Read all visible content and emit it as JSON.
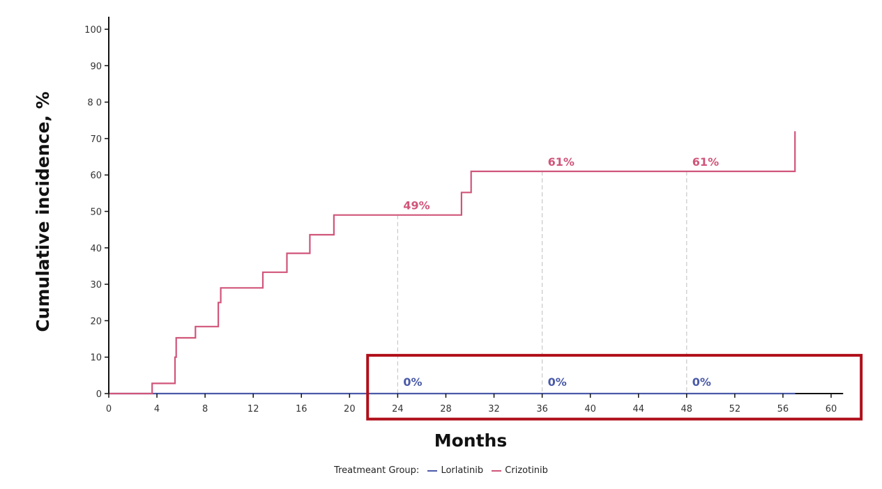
{
  "chart_data": {
    "type": "line",
    "step": true,
    "xlabel": "Months",
    "ylabel": "Cumulative incidence, %",
    "xlim": [
      0,
      61
    ],
    "ylim": [
      0,
      100
    ],
    "x_ticks": [
      0,
      4,
      8,
      12,
      16,
      20,
      24,
      28,
      32,
      36,
      40,
      44,
      48,
      52,
      56,
      60
    ],
    "y_ticks": [
      {
        "value": 0,
        "label": "0"
      },
      {
        "value": 10,
        "label": "10"
      },
      {
        "value": 20,
        "label": "20"
      },
      {
        "value": 30,
        "label": "30"
      },
      {
        "value": 40,
        "label": "40"
      },
      {
        "value": 50,
        "label": "50"
      },
      {
        "value": 60,
        "label": "60"
      },
      {
        "value": 70,
        "label": "70"
      },
      {
        "value": 80,
        "label": "8 0"
      },
      {
        "value": 90,
        "label": "90"
      },
      {
        "value": 100,
        "label": "100"
      }
    ],
    "series": [
      {
        "name": "Lorlatinib",
        "color": "#4a5aa8",
        "points": [
          [
            0,
            0
          ],
          [
            57,
            0
          ]
        ]
      },
      {
        "name": "Crizotinib",
        "color": "#d0557a",
        "points": [
          [
            0,
            0
          ],
          [
            3.6,
            0
          ],
          [
            3.6,
            2.8
          ],
          [
            5.5,
            2.8
          ],
          [
            5.5,
            10
          ],
          [
            5.6,
            10
          ],
          [
            5.6,
            15.3
          ],
          [
            7.2,
            15.3
          ],
          [
            7.2,
            18.4
          ],
          [
            9.1,
            18.4
          ],
          [
            9.1,
            25
          ],
          [
            9.3,
            25
          ],
          [
            9.3,
            29
          ],
          [
            12.8,
            29
          ],
          [
            12.8,
            33.3
          ],
          [
            14.8,
            33.3
          ],
          [
            14.8,
            38.5
          ],
          [
            16.7,
            38.5
          ],
          [
            16.7,
            43.6
          ],
          [
            18.7,
            43.6
          ],
          [
            18.7,
            49
          ],
          [
            29.3,
            49
          ],
          [
            29.3,
            55.2
          ],
          [
            30.1,
            55.2
          ],
          [
            30.1,
            61
          ],
          [
            57,
            61
          ],
          [
            57,
            72
          ]
        ]
      }
    ],
    "reference_lines": [
      24,
      36,
      48
    ],
    "annotations": [
      {
        "x": 24,
        "y": 49,
        "text": "49%",
        "series": "Crizotinib"
      },
      {
        "x": 36,
        "y": 61,
        "text": "61%",
        "series": "Crizotinib"
      },
      {
        "x": 48,
        "y": 61,
        "text": "61%",
        "series": "Crizotinib"
      },
      {
        "x": 24,
        "y": 0,
        "text": "0%",
        "series": "Lorlatinib"
      },
      {
        "x": 36,
        "y": 0,
        "text": "0%",
        "series": "Lorlatinib"
      },
      {
        "x": 48,
        "y": 0,
        "text": "0%",
        "series": "Lorlatinib"
      }
    ],
    "highlight_box": {
      "x_range": [
        21.5,
        62.5
      ],
      "y_range": [
        -7,
        10.5
      ],
      "color": "#b00f1a"
    },
    "legend": {
      "title": "Treatmeant Group:",
      "placement": "bottom-center"
    }
  }
}
